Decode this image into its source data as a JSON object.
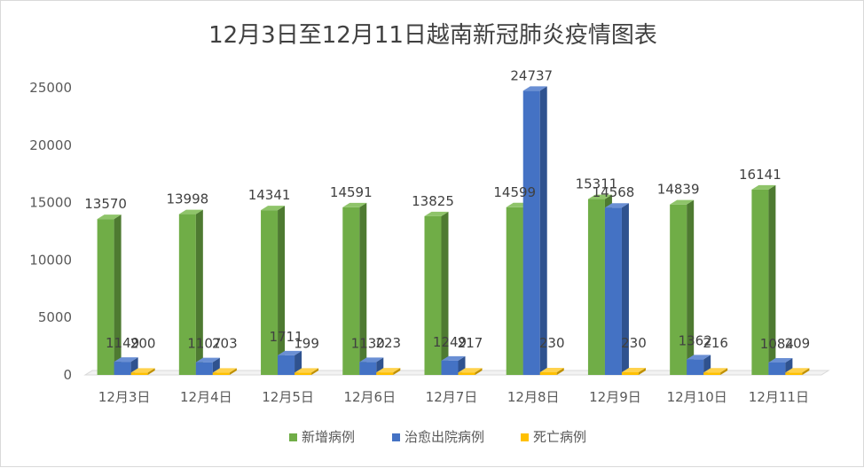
{
  "chart_data": {
    "type": "bar",
    "title": "12月3日至12月11日越南新冠肺炎疫情图表",
    "categories": [
      "12月3日",
      "12月4日",
      "12月5日",
      "12月6日",
      "12月7日",
      "12月8日",
      "12月9日",
      "12月10日",
      "12月11日"
    ],
    "series": [
      {
        "name": "新增病例",
        "color": "#70ad47",
        "side": "#4e7a31",
        "top": "#8fc46a",
        "values": [
          13570,
          13998,
          14341,
          14591,
          13825,
          14599,
          15311,
          14839,
          16141
        ]
      },
      {
        "name": "治愈出院病例",
        "color": "#4472c4",
        "side": "#2f528f",
        "top": "#6a8fd4",
        "values": [
          1149,
          1107,
          1711,
          1130,
          1249,
          24737,
          14568,
          1362,
          1084
        ]
      },
      {
        "name": "死亡病例",
        "color": "#ffc000",
        "side": "#bf9000",
        "top": "#ffd24d",
        "values": [
          200,
          203,
          199,
          223,
          217,
          230,
          230,
          216,
          209
        ]
      }
    ],
    "yticks": [
      0,
      5000,
      10000,
      15000,
      20000,
      25000
    ],
    "ylim": [
      0,
      25000
    ],
    "grid": false,
    "legend": "bottom"
  }
}
